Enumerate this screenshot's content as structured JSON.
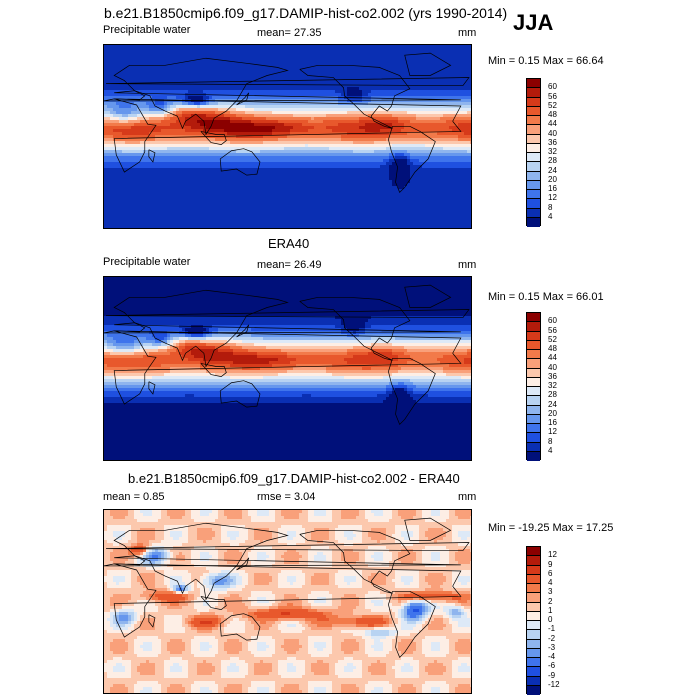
{
  "season": "JJA",
  "panels": [
    {
      "title": "b.e21.B1850cmip6.f09_g17.DAMIP-hist-co2.002 (yrs 1990-2014)",
      "left_label": "Precipitable water",
      "center_label": "mean=  27.35",
      "units": "mm",
      "minmax": "Min =   0.15 Max =  66.64",
      "map_type": "absolute",
      "levels": [
        "60",
        "56",
        "52",
        "48",
        "44",
        "40",
        "36",
        "32",
        "28",
        "24",
        "20",
        "16",
        "12",
        "8",
        "4"
      ],
      "colors": [
        "#8b0000",
        "#b31b0b",
        "#d63a1a",
        "#e8582c",
        "#f27a4a",
        "#f9a07a",
        "#fcc8ad",
        "#fdeee5",
        "#dde9f7",
        "#b8d3f2",
        "#8fb5ee",
        "#6697ed",
        "#3f74ec",
        "#1f50e0",
        "#0a2fb3",
        "#00107a"
      ]
    },
    {
      "title": "ERA40",
      "left_label": "Precipitable water",
      "center_label": "mean=  26.49",
      "units": "mm",
      "minmax": "Min =   0.15 Max =  66.01",
      "map_type": "absolute",
      "levels": [
        "60",
        "56",
        "52",
        "48",
        "44",
        "40",
        "36",
        "32",
        "28",
        "24",
        "20",
        "16",
        "12",
        "8",
        "4"
      ],
      "colors": [
        "#8b0000",
        "#b31b0b",
        "#d63a1a",
        "#e8582c",
        "#f27a4a",
        "#f9a07a",
        "#fcc8ad",
        "#fdeee5",
        "#dde9f7",
        "#b8d3f2",
        "#8fb5ee",
        "#6697ed",
        "#3f74ec",
        "#1f50e0",
        "#0a2fb3",
        "#00107a"
      ]
    },
    {
      "title": "b.e21.B1850cmip6.f09_g17.DAMIP-hist-co2.002 - ERA40",
      "left_label": "mean =   0.85",
      "center_label": "rmse =   3.04",
      "units": "mm",
      "minmax": "Min = -19.25 Max =  17.25",
      "map_type": "difference",
      "levels": [
        "12",
        "9",
        "6",
        "4",
        "3",
        "2",
        "1",
        "0",
        "-1",
        "-2",
        "-3",
        "-4",
        "-6",
        "-9",
        "-12"
      ],
      "colors": [
        "#8b0000",
        "#b31b0b",
        "#d63a1a",
        "#e8582c",
        "#f27a4a",
        "#f9a07a",
        "#fcc8ad",
        "#fdeee5",
        "#dde9f7",
        "#b8d3f2",
        "#8fb5ee",
        "#6697ed",
        "#3f74ec",
        "#1f50e0",
        "#0a2fb3",
        "#00107a"
      ]
    }
  ]
}
